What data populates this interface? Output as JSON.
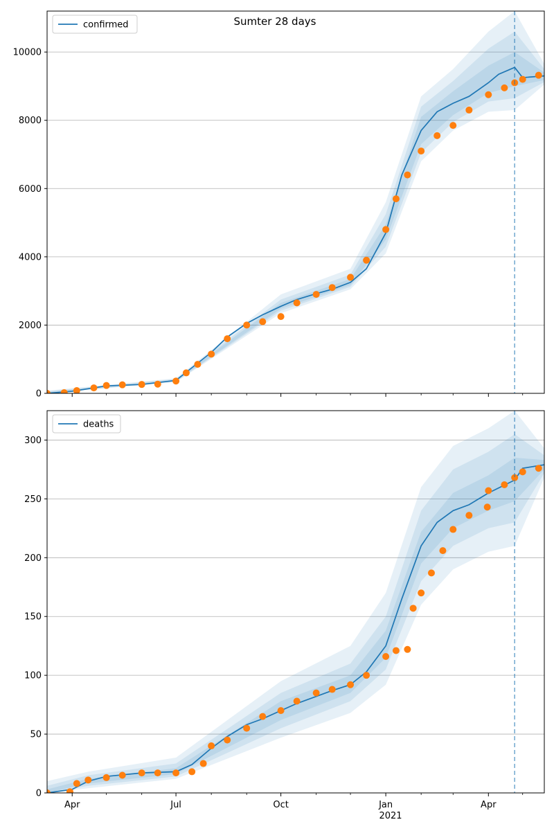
{
  "figure_title": "Sumter 28 days",
  "colors": {
    "model_line": "#1f77b4",
    "observed_points": "#ff7f0e",
    "band": "#1f77b4",
    "grid": "#b0b0b0",
    "forecast_marker": "#1f77b4"
  },
  "forecast_date": "2021-04-24",
  "chart_data": [
    {
      "type": "line",
      "legend": "confirmed",
      "legend_position": "top-left",
      "grid": "horizontal",
      "xlim": [
        "2020-03-10",
        "2021-05-20"
      ],
      "ylim": [
        0,
        11200
      ],
      "yticks": [
        0,
        2000,
        4000,
        6000,
        8000,
        10000
      ],
      "model_series": {
        "name": "confirmed",
        "x": [
          "2020-03-10",
          "2020-04-01",
          "2020-05-01",
          "2020-06-01",
          "2020-07-01",
          "2020-07-15",
          "2020-08-01",
          "2020-08-15",
          "2020-09-01",
          "2020-09-15",
          "2020-10-01",
          "2020-10-15",
          "2020-11-01",
          "2020-11-15",
          "2020-12-01",
          "2020-12-15",
          "2021-01-01",
          "2021-01-15",
          "2021-02-01",
          "2021-02-15",
          "2021-03-01",
          "2021-03-15",
          "2021-04-01",
          "2021-04-10",
          "2021-04-24",
          "2021-05-01",
          "2021-05-20"
        ],
        "y": [
          0,
          60,
          220,
          260,
          380,
          750,
          1200,
          1650,
          2050,
          2300,
          2550,
          2750,
          2920,
          3050,
          3250,
          3650,
          4700,
          6400,
          7700,
          8250,
          8500,
          8700,
          9100,
          9350,
          9550,
          9250,
          9300
        ]
      },
      "bands": [
        {
          "x": [
            "2020-03-10",
            "2020-07-01",
            "2020-10-01",
            "2020-12-01",
            "2021-01-01",
            "2021-02-01",
            "2021-03-01",
            "2021-04-01",
            "2021-04-24",
            "2021-05-20"
          ],
          "lower": [
            0,
            330,
            2350,
            3050,
            4100,
            6800,
            7700,
            8250,
            8300,
            9050
          ],
          "upper": [
            80,
            440,
            2900,
            3650,
            5600,
            8700,
            9500,
            10600,
            11200,
            9650
          ]
        },
        {
          "x": [
            "2020-03-10",
            "2020-07-01",
            "2020-10-01",
            "2020-12-01",
            "2021-01-01",
            "2021-02-01",
            "2021-03-01",
            "2021-04-01",
            "2021-04-24",
            "2021-05-20"
          ],
          "lower": [
            0,
            345,
            2420,
            3120,
            4300,
            7050,
            7950,
            8550,
            8650,
            9120
          ],
          "upper": [
            60,
            420,
            2750,
            3480,
            5250,
            8400,
            9150,
            10100,
            10600,
            9500
          ]
        },
        {
          "x": [
            "2020-03-10",
            "2020-07-01",
            "2020-10-01",
            "2020-12-01",
            "2021-01-01",
            "2021-02-01",
            "2021-03-01",
            "2021-04-01",
            "2021-04-24",
            "2021-05-20"
          ],
          "lower": [
            0,
            360,
            2480,
            3170,
            4500,
            7300,
            8150,
            8800,
            9000,
            9180
          ],
          "upper": [
            40,
            400,
            2650,
            3350,
            4950,
            8100,
            8850,
            9600,
            10000,
            9400
          ]
        }
      ],
      "observed": {
        "x": [
          "2020-03-10",
          "2020-03-25",
          "2020-04-05",
          "2020-04-20",
          "2020-05-01",
          "2020-05-15",
          "2020-06-01",
          "2020-06-15",
          "2020-07-01",
          "2020-07-10",
          "2020-07-20",
          "2020-08-01",
          "2020-08-15",
          "2020-09-01",
          "2020-09-15",
          "2020-10-01",
          "2020-10-15",
          "2020-11-01",
          "2020-11-15",
          "2020-12-01",
          "2020-12-15",
          "2021-01-01",
          "2021-01-10",
          "2021-01-20",
          "2021-02-01",
          "2021-02-15",
          "2021-03-01",
          "2021-03-15",
          "2021-04-01",
          "2021-04-15",
          "2021-04-24",
          "2021-05-01",
          "2021-05-15"
        ],
        "y": [
          0,
          20,
          80,
          160,
          230,
          250,
          260,
          270,
          360,
          600,
          850,
          1150,
          1600,
          2000,
          2100,
          2250,
          2650,
          2900,
          3100,
          3400,
          3900,
          4800,
          5700,
          6400,
          7100,
          7550,
          7850,
          8300,
          8750,
          8950,
          9100,
          9200,
          9320
        ]
      }
    },
    {
      "type": "line",
      "legend": "deaths",
      "legend_position": "top-left",
      "grid": "horizontal",
      "xlim": [
        "2020-03-10",
        "2021-05-20"
      ],
      "ylim": [
        0,
        325
      ],
      "yticks": [
        0,
        50,
        100,
        150,
        200,
        250,
        300
      ],
      "model_series": {
        "name": "deaths",
        "x": [
          "2020-03-10",
          "2020-04-01",
          "2020-04-15",
          "2020-05-01",
          "2020-06-01",
          "2020-07-01",
          "2020-07-15",
          "2020-08-01",
          "2020-08-15",
          "2020-09-01",
          "2020-09-15",
          "2020-10-01",
          "2020-10-15",
          "2020-11-01",
          "2020-11-15",
          "2020-12-01",
          "2020-12-15",
          "2021-01-01",
          "2021-01-15",
          "2021-02-01",
          "2021-02-15",
          "2021-03-01",
          "2021-03-15",
          "2021-04-01",
          "2021-04-24",
          "2021-05-01",
          "2021-05-20"
        ],
        "y": [
          0,
          3,
          10,
          14,
          17,
          18,
          24,
          38,
          48,
          58,
          63,
          70,
          76,
          82,
          87,
          92,
          103,
          125,
          165,
          210,
          230,
          240,
          245,
          255,
          266,
          276,
          279
        ]
      },
      "bands": [
        {
          "x": [
            "2020-03-10",
            "2020-04-15",
            "2020-07-01",
            "2020-10-01",
            "2020-12-01",
            "2021-01-01",
            "2021-02-01",
            "2021-03-01",
            "2021-04-01",
            "2021-04-24",
            "2021-05-20"
          ],
          "lower": [
            0,
            4,
            12,
            47,
            68,
            92,
            160,
            190,
            205,
            210,
            268
          ],
          "upper": [
            10,
            18,
            30,
            95,
            125,
            170,
            260,
            295,
            310,
            325,
            293
          ]
        },
        {
          "x": [
            "2020-03-10",
            "2020-04-15",
            "2020-07-01",
            "2020-10-01",
            "2020-12-01",
            "2021-01-01",
            "2021-02-01",
            "2021-03-01",
            "2021-04-01",
            "2021-04-24",
            "2021-05-20"
          ],
          "lower": [
            0,
            6,
            14,
            55,
            78,
            105,
            180,
            210,
            225,
            230,
            272
          ],
          "upper": [
            6,
            15,
            25,
            85,
            110,
            150,
            240,
            275,
            290,
            305,
            287
          ]
        },
        {
          "x": [
            "2020-03-10",
            "2020-04-15",
            "2020-07-01",
            "2020-10-01",
            "2020-12-01",
            "2021-01-01",
            "2021-02-01",
            "2021-03-01",
            "2021-04-01",
            "2021-04-24",
            "2021-05-20"
          ],
          "lower": [
            0,
            8,
            16,
            62,
            85,
            115,
            195,
            225,
            240,
            248,
            275
          ],
          "upper": [
            3,
            12,
            21,
            78,
            100,
            138,
            222,
            255,
            270,
            285,
            283
          ]
        }
      ],
      "observed": {
        "x": [
          "2020-03-10",
          "2020-03-30",
          "2020-04-05",
          "2020-04-15",
          "2020-05-01",
          "2020-05-15",
          "2020-06-01",
          "2020-06-15",
          "2020-07-01",
          "2020-07-15",
          "2020-07-25",
          "2020-08-01",
          "2020-08-15",
          "2020-09-01",
          "2020-09-15",
          "2020-10-01",
          "2020-10-15",
          "2020-11-01",
          "2020-11-15",
          "2020-12-01",
          "2020-12-15",
          "2021-01-01",
          "2021-01-10",
          "2021-01-20",
          "2021-01-25",
          "2021-02-01",
          "2021-02-10",
          "2021-02-20",
          "2021-03-01",
          "2021-03-15",
          "2021-03-31",
          "2021-04-01",
          "2021-04-15",
          "2021-04-24",
          "2021-05-01",
          "2021-05-15"
        ],
        "y": [
          0,
          1,
          8,
          11,
          13,
          15,
          17,
          17,
          17,
          18,
          25,
          40,
          45,
          55,
          65,
          70,
          78,
          85,
          88,
          92,
          100,
          116,
          121,
          122,
          157,
          170,
          187,
          206,
          224,
          236,
          243,
          257,
          262,
          268,
          273,
          276
        ]
      }
    }
  ],
  "x_ticks": [
    {
      "date": "2020-04-01",
      "label": "Apr"
    },
    {
      "date": "2020-07-01",
      "label": "Jul"
    },
    {
      "date": "2020-10-01",
      "label": "Oct"
    },
    {
      "date": "2021-01-01",
      "label": "Jan"
    },
    {
      "date": "2021-04-01",
      "label": "Apr"
    }
  ],
  "x_minor_ticks": [
    "2020-05-01",
    "2020-06-01",
    "2020-08-01",
    "2020-09-01",
    "2020-11-01",
    "2020-12-01",
    "2021-02-01",
    "2021-03-01",
    "2021-05-01"
  ],
  "x_year_label": "2021"
}
